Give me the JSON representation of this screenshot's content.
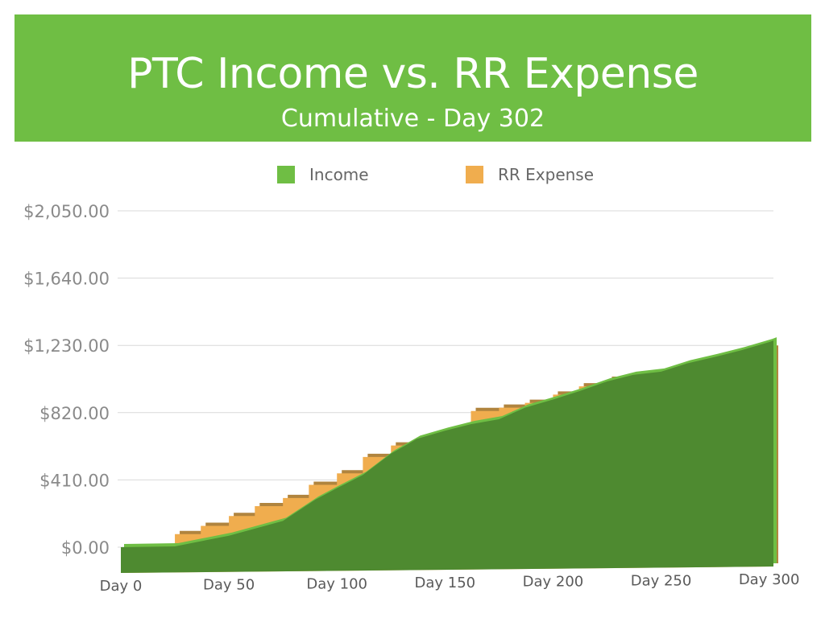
{
  "title": "PTC Income vs. RR Expense",
  "subtitle": "Cumulative - Day 302",
  "colors": {
    "banner": "#6fbe44",
    "income": "#6fbe44",
    "income_dark": "#4e8a30",
    "expense": "#f0ad4e",
    "expense_dark": "#b0843e",
    "grid": "#d9d9d9",
    "tick_text": "#8a8a8a"
  },
  "chart_data": {
    "type": "area",
    "title": "PTC Income vs. RR Expense",
    "subtitle": "Cumulative - Day 302",
    "xlabel": "",
    "ylabel": "",
    "x_tick_labels": [
      "Day 0",
      "Day 50",
      "Day 100",
      "Day 150",
      "Day 200",
      "Day 250",
      "Day 300"
    ],
    "x_tick_values": [
      0,
      50,
      100,
      150,
      200,
      250,
      300
    ],
    "y_tick_labels": [
      "$0.00",
      "$410.00",
      "$820.00",
      "$1,230.00",
      "$1,640.00",
      "$2,050.00"
    ],
    "y_tick_values": [
      0,
      410,
      820,
      1230,
      1640,
      2050
    ],
    "xlim": [
      0,
      302
    ],
    "ylim": [
      0,
      2050
    ],
    "grid": true,
    "legend_position": "top",
    "series": [
      {
        "name": "Income",
        "x": [
          0,
          25,
          50,
          75,
          90,
          100,
          112,
          125,
          137,
          150,
          162,
          175,
          187,
          200,
          212,
          225,
          237,
          250,
          262,
          275,
          287,
          300,
          302
        ],
        "values": [
          0,
          5,
          70,
          160,
          290,
          360,
          440,
          570,
          660,
          710,
          750,
          780,
          850,
          900,
          950,
          1010,
          1050,
          1070,
          1120,
          1160,
          1200,
          1250,
          1260
        ]
      },
      {
        "name": "RR Expense",
        "x": [
          0,
          25,
          37,
          50,
          62,
          75,
          87,
          100,
          112,
          125,
          137,
          150,
          162,
          175,
          187,
          200,
          212,
          225,
          237,
          250,
          262,
          275,
          287,
          300,
          302
        ],
        "values": [
          0,
          80,
          130,
          190,
          250,
          300,
          380,
          450,
          550,
          620,
          640,
          700,
          830,
          850,
          880,
          930,
          980,
          1020,
          1020,
          1050,
          1070,
          1120,
          1160,
          1210,
          1230
        ]
      }
    ]
  }
}
